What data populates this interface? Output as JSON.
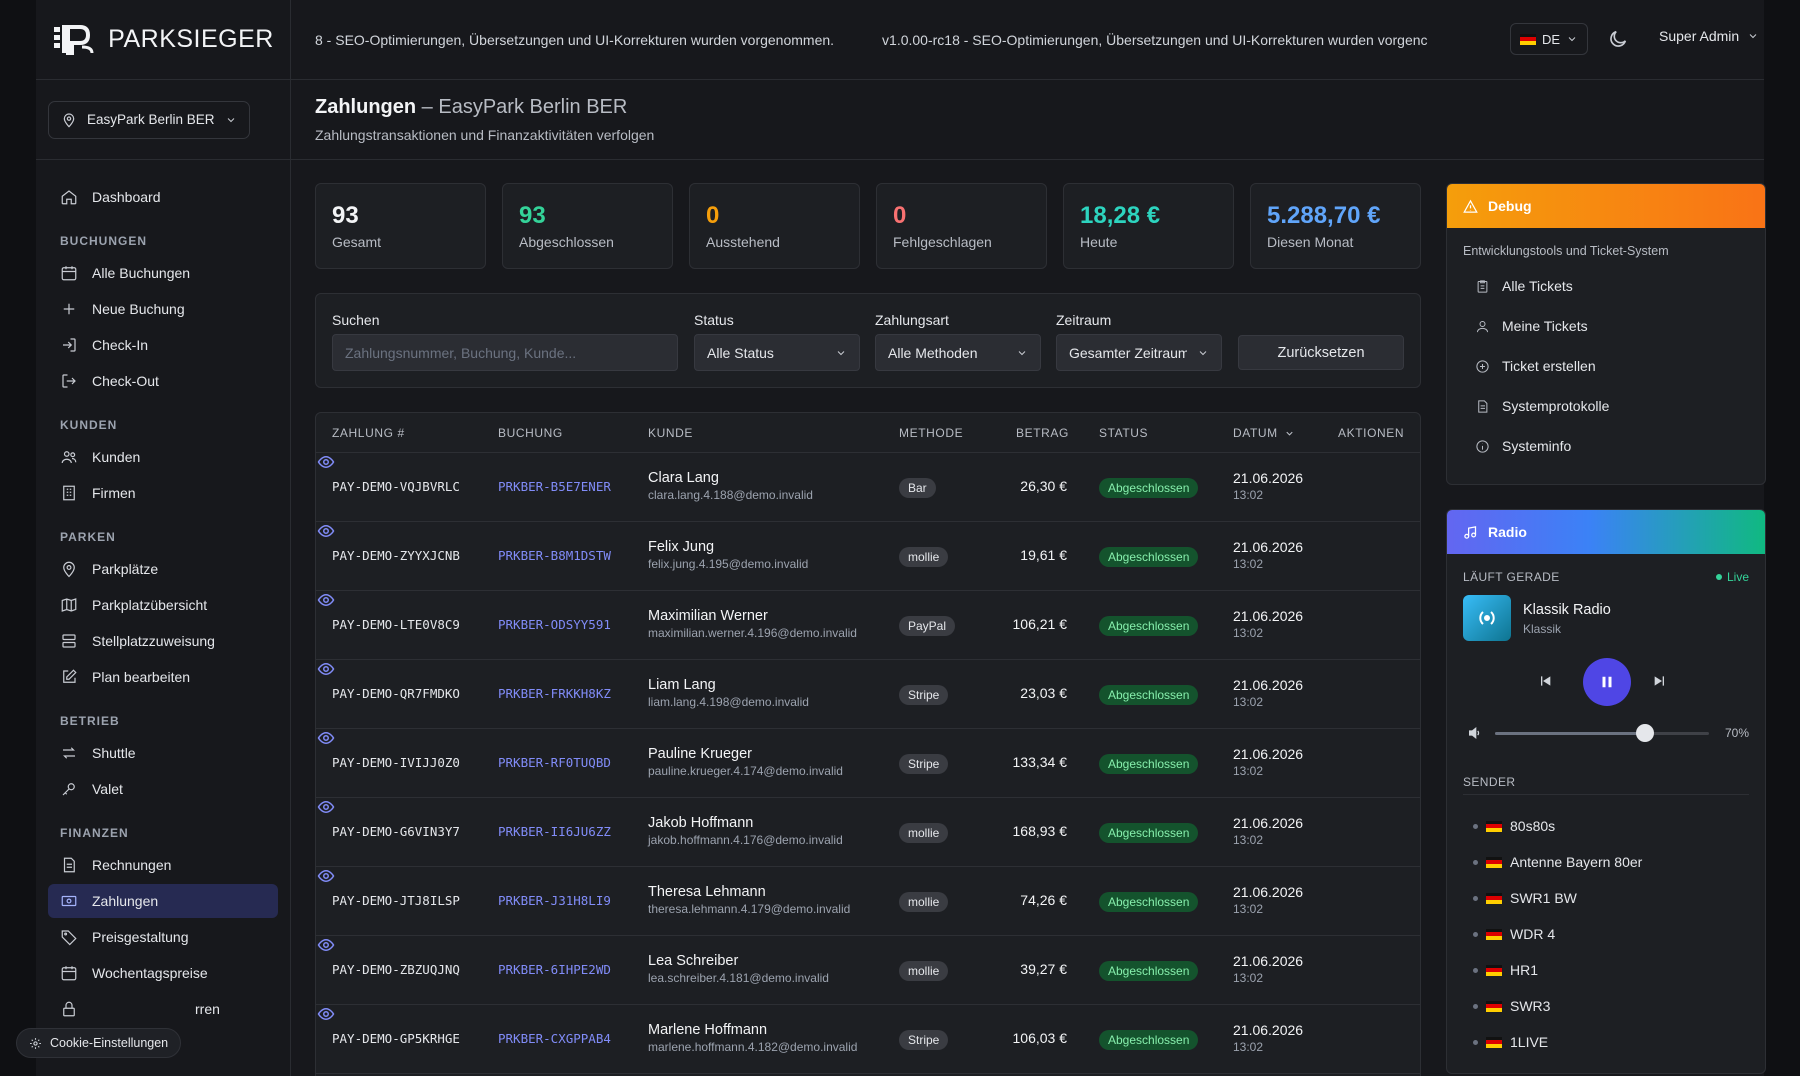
{
  "brand": {
    "name": "PARKSIEGER"
  },
  "location": {
    "label": "EasyPark Berlin BER"
  },
  "nav": {
    "dashboard": "Dashboard",
    "sections": {
      "buchungen": "BUCHUNGEN",
      "kunden": "KUNDEN",
      "parken": "PARKEN",
      "betrieb": "BETRIEB",
      "finanzen": "FINANZEN"
    },
    "items": {
      "alle_buchungen": "Alle Buchungen",
      "neue_buchung": "Neue Buchung",
      "check_in": "Check-In",
      "check_out": "Check-Out",
      "kunden": "Kunden",
      "firmen": "Firmen",
      "parkplaetze": "Parkplätze",
      "parkplatzuebersicht": "Parkplatzübersicht",
      "stellplatzzuweisung": "Stellplatzzuweisung",
      "plan_bearbeiten": "Plan bearbeiten",
      "shuttle": "Shuttle",
      "valet": "Valet",
      "rechnungen": "Rechnungen",
      "zahlungen": "Zahlungen",
      "preisgestaltung": "Preisgestaltung",
      "wochentagspreise": "Wochentagspreise",
      "sperren_partial": "rren"
    }
  },
  "cookie": {
    "label": "Cookie-Einstellungen"
  },
  "topbar": {
    "ticker_1": "8 - SEO-Optimierungen, Übersetzungen und UI-Korrekturen wurden vorgenommen.",
    "ticker_2": "v1.0.00-rc18 - SEO-Optimierungen, Übersetzungen und UI-Korrekturen wurden vorgenc",
    "lang": "DE",
    "user": "Super Admin"
  },
  "page": {
    "title": "Zahlungen",
    "title_sep": " – ",
    "title_sub": "EasyPark Berlin BER",
    "subtitle": "Zahlungstransaktionen und Finanzaktivitäten verfolgen"
  },
  "stats": [
    {
      "value": "93",
      "label": "Gesamt",
      "color": "#f3f4f6"
    },
    {
      "value": "93",
      "label": "Abgeschlossen",
      "color": "#34d399"
    },
    {
      "value": "0",
      "label": "Ausstehend",
      "color": "#f59e0b"
    },
    {
      "value": "0",
      "label": "Fehlgeschlagen",
      "color": "#f87171"
    },
    {
      "value": "18,28 €",
      "label": "Heute",
      "color": "#2dd4bf"
    },
    {
      "value": "5.288,70 €",
      "label": "Diesen Monat",
      "color": "#60a5fa"
    }
  ],
  "filters": {
    "search_label": "Suchen",
    "search_placeholder": "Zahlungsnummer, Buchung, Kunde...",
    "status_label": "Status",
    "status_value": "Alle Status",
    "method_label": "Zahlungsart",
    "method_value": "Alle Methoden",
    "period_label": "Zeitraum",
    "period_value": "Gesamter Zeitraum",
    "reset": "Zurücksetzen"
  },
  "table": {
    "headers": {
      "zahlung": "ZAHLUNG #",
      "buchung": "BUCHUNG",
      "kunde": "KUNDE",
      "methode": "METHODE",
      "betrag": "BETRAG",
      "status": "STATUS",
      "datum": "DATUM",
      "aktionen": "AKTIONEN"
    },
    "rows": [
      {
        "id": "PAY-DEMO-VQJBVRLC",
        "booking": "PRKBER-B5E7ENER",
        "name": "Clara Lang",
        "email": "clara.lang.4.188@demo.invalid",
        "method": "Bar",
        "amount": "26,30 €",
        "status": "Abgeschlossen",
        "date": "21.06.2026",
        "time": "13:02"
      },
      {
        "id": "PAY-DEMO-ZYYXJCNB",
        "booking": "PRKBER-B8M1DSTW",
        "name": "Felix Jung",
        "email": "felix.jung.4.195@demo.invalid",
        "method": "mollie",
        "amount": "19,61 €",
        "status": "Abgeschlossen",
        "date": "21.06.2026",
        "time": "13:02"
      },
      {
        "id": "PAY-DEMO-LTE0V8C9",
        "booking": "PRKBER-ODSYY591",
        "name": "Maximilian Werner",
        "email": "maximilian.werner.4.196@demo.invalid",
        "method": "PayPal",
        "amount": "106,21 €",
        "status": "Abgeschlossen",
        "date": "21.06.2026",
        "time": "13:02"
      },
      {
        "id": "PAY-DEMO-QR7FMDKO",
        "booking": "PRKBER-FRKKH8KZ",
        "name": "Liam Lang",
        "email": "liam.lang.4.198@demo.invalid",
        "method": "Stripe",
        "amount": "23,03 €",
        "status": "Abgeschlossen",
        "date": "21.06.2026",
        "time": "13:02"
      },
      {
        "id": "PAY-DEMO-IVIJJ0Z0",
        "booking": "PRKBER-RF0TUQBD",
        "name": "Pauline Krueger",
        "email": "pauline.krueger.4.174@demo.invalid",
        "method": "Stripe",
        "amount": "133,34 €",
        "status": "Abgeschlossen",
        "date": "21.06.2026",
        "time": "13:02"
      },
      {
        "id": "PAY-DEMO-G6VIN3Y7",
        "booking": "PRKBER-II6JU6ZZ",
        "name": "Jakob Hoffmann",
        "email": "jakob.hoffmann.4.176@demo.invalid",
        "method": "mollie",
        "amount": "168,93 €",
        "status": "Abgeschlossen",
        "date": "21.06.2026",
        "time": "13:02"
      },
      {
        "id": "PAY-DEMO-JTJ8ILSP",
        "booking": "PRKBER-J31H8LI9",
        "name": "Theresa Lehmann",
        "email": "theresa.lehmann.4.179@demo.invalid",
        "method": "mollie",
        "amount": "74,26 €",
        "status": "Abgeschlossen",
        "date": "21.06.2026",
        "time": "13:02"
      },
      {
        "id": "PAY-DEMO-ZBZUQJNQ",
        "booking": "PRKBER-6IHPE2WD",
        "name": "Lea Schreiber",
        "email": "lea.schreiber.4.181@demo.invalid",
        "method": "mollie",
        "amount": "39,27 €",
        "status": "Abgeschlossen",
        "date": "21.06.2026",
        "time": "13:02"
      },
      {
        "id": "PAY-DEMO-GP5KRHGE",
        "booking": "PRKBER-CXGPPAB4",
        "name": "Marlene Hoffmann",
        "email": "marlene.hoffmann.4.182@demo.invalid",
        "method": "Stripe",
        "amount": "106,03 €",
        "status": "Abgeschlossen",
        "date": "21.06.2026",
        "time": "13:02"
      }
    ]
  },
  "debug": {
    "title": "Debug",
    "subtitle": "Entwicklungstools und Ticket-System",
    "items": [
      "Alle Tickets",
      "Meine Tickets",
      "Ticket erstellen",
      "Systemprotokolle",
      "Systeminfo"
    ]
  },
  "radio": {
    "title": "Radio",
    "now_playing": "LÄUFT GERADE",
    "live": "Live",
    "station": "Klassik Radio",
    "genre": "Klassik",
    "volume": 0.7,
    "volume_label": "70%",
    "sender_title": "SENDER",
    "senders": [
      "80s80s",
      "Antenne Bayern 80er",
      "SWR1 BW",
      "WDR 4",
      "HR1",
      "SWR3",
      "1LIVE"
    ]
  }
}
